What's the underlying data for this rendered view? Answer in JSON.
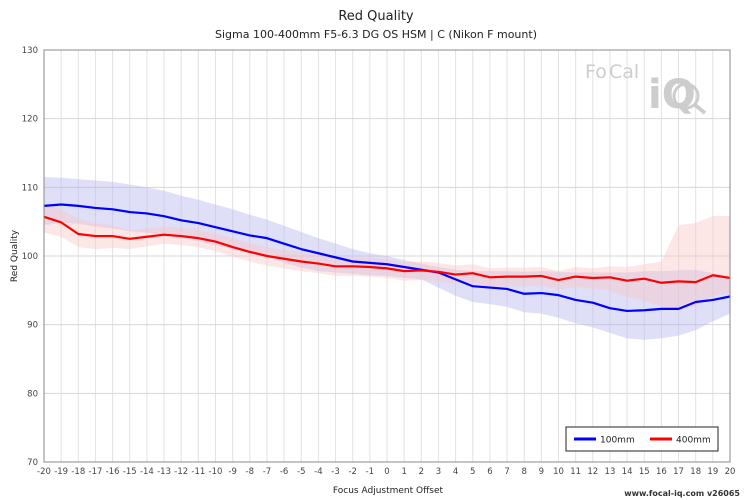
{
  "chart_data": {
    "type": "line",
    "title": "Red Quality",
    "subtitle": "Sigma 100-400mm F5-6.3 DG OS HSM | C (Nikon F mount)",
    "xlabel": "Focus Adjustment Offset",
    "ylabel": "Red Quality",
    "xlim": [
      -20,
      20
    ],
    "ylim": [
      70,
      130
    ],
    "x_ticks": [
      -20,
      -19,
      -18,
      -17,
      -16,
      -15,
      -14,
      -13,
      -12,
      -11,
      -10,
      -9,
      -8,
      -7,
      -6,
      -5,
      -4,
      -3,
      -2,
      -1,
      0,
      1,
      2,
      3,
      4,
      5,
      6,
      7,
      8,
      9,
      10,
      11,
      12,
      13,
      14,
      15,
      16,
      17,
      18,
      19,
      20
    ],
    "y_ticks": [
      70,
      80,
      90,
      100,
      110,
      120,
      130
    ],
    "grid": true,
    "legend_position": "bottom-right",
    "series": [
      {
        "name": "100mm",
        "color": "#0000ff",
        "band_color": "#b8b8f0",
        "x": [
          -20,
          -19,
          -18,
          -17,
          -16,
          -15,
          -14,
          -13,
          -12,
          -11,
          -10,
          -9,
          -8,
          -7,
          -6,
          -5,
          -4,
          -3,
          -2,
          -1,
          0,
          1,
          2,
          3,
          4,
          5,
          6,
          7,
          8,
          9,
          10,
          11,
          12,
          13,
          14,
          15,
          16,
          17,
          18,
          19,
          20
        ],
        "values": [
          107.3,
          107.5,
          107.3,
          107.0,
          106.8,
          106.4,
          106.2,
          105.8,
          105.2,
          104.8,
          104.2,
          103.6,
          103.0,
          102.6,
          101.8,
          101.0,
          100.4,
          99.8,
          99.2,
          99.0,
          98.8,
          98.4,
          98.0,
          97.6,
          96.6,
          95.6,
          95.4,
          95.2,
          94.5,
          94.6,
          94.3,
          93.6,
          93.2,
          92.4,
          92.0,
          92.1,
          92.3,
          92.3,
          93.3,
          93.6,
          94.1
        ],
        "upper": [
          111.5,
          111.4,
          111.2,
          111.0,
          110.8,
          110.4,
          110.0,
          109.5,
          108.8,
          108.2,
          107.5,
          106.8,
          106.0,
          105.3,
          104.4,
          103.5,
          102.6,
          101.8,
          101.0,
          100.4,
          100.0,
          99.4,
          98.9,
          98.4,
          98.0,
          97.8,
          97.8,
          97.8,
          97.7,
          97.8,
          97.7,
          97.6,
          97.6,
          97.6,
          97.6,
          97.8,
          97.8,
          97.9,
          98.0,
          97.5,
          97.0
        ],
        "lower": [
          104.5,
          104.8,
          104.7,
          104.3,
          104.0,
          103.6,
          103.4,
          103.0,
          102.6,
          102.2,
          101.6,
          101.0,
          100.4,
          99.9,
          99.0,
          98.3,
          97.8,
          97.6,
          97.4,
          97.2,
          97.1,
          96.8,
          96.6,
          95.4,
          94.2,
          93.3,
          93.0,
          92.6,
          91.8,
          91.6,
          91.0,
          90.2,
          89.6,
          88.8,
          88.0,
          87.8,
          88.0,
          88.4,
          89.2,
          90.5,
          91.6
        ]
      },
      {
        "name": "400mm",
        "color": "#ff0000",
        "band_color": "#f8c8c8",
        "x": [
          -20,
          -19,
          -18,
          -17,
          -16,
          -15,
          -14,
          -13,
          -12,
          -11,
          -10,
          -9,
          -8,
          -7,
          -6,
          -5,
          -4,
          -3,
          -2,
          -1,
          0,
          1,
          2,
          3,
          4,
          5,
          6,
          7,
          8,
          9,
          10,
          11,
          12,
          13,
          14,
          15,
          16,
          17,
          18,
          19,
          20
        ],
        "values": [
          105.7,
          104.9,
          103.2,
          102.9,
          102.9,
          102.5,
          102.8,
          103.1,
          102.9,
          102.6,
          102.1,
          101.3,
          100.6,
          100.0,
          99.6,
          99.2,
          98.9,
          98.5,
          98.5,
          98.4,
          98.2,
          97.8,
          97.9,
          97.7,
          97.3,
          97.5,
          96.9,
          97.0,
          97.0,
          97.1,
          96.5,
          97.0,
          96.8,
          96.9,
          96.4,
          96.7,
          96.1,
          96.3,
          96.2,
          97.2,
          96.8
        ],
        "upper": [
          107.5,
          106.8,
          105.4,
          104.8,
          104.4,
          103.8,
          104.0,
          104.3,
          104.1,
          103.8,
          103.3,
          102.6,
          101.9,
          101.3,
          100.9,
          100.5,
          100.2,
          99.8,
          99.8,
          99.7,
          99.5,
          99.1,
          99.2,
          99.0,
          98.6,
          98.8,
          98.2,
          98.3,
          98.3,
          98.4,
          97.8,
          98.4,
          98.2,
          98.5,
          98.4,
          98.8,
          99.2,
          104.5,
          104.8,
          105.8,
          105.8
        ],
        "lower": [
          103.4,
          102.8,
          101.3,
          101.0,
          101.2,
          101.0,
          101.4,
          101.8,
          101.6,
          101.3,
          100.7,
          99.9,
          99.2,
          98.6,
          98.2,
          97.8,
          97.5,
          97.1,
          97.1,
          97.0,
          96.8,
          96.4,
          96.5,
          96.3,
          95.9,
          96.1,
          95.5,
          95.6,
          95.6,
          95.7,
          95.1,
          95.5,
          95.2,
          95.0,
          94.0,
          93.5,
          92.6,
          92.0,
          92.8,
          94.2,
          94.6
        ]
      }
    ]
  },
  "watermark": {
    "logo_part1": "Fo",
    "logo_part2": "Cal",
    "logo_part3": "iQ"
  },
  "credit": "www.focal-iq.com  v26065"
}
